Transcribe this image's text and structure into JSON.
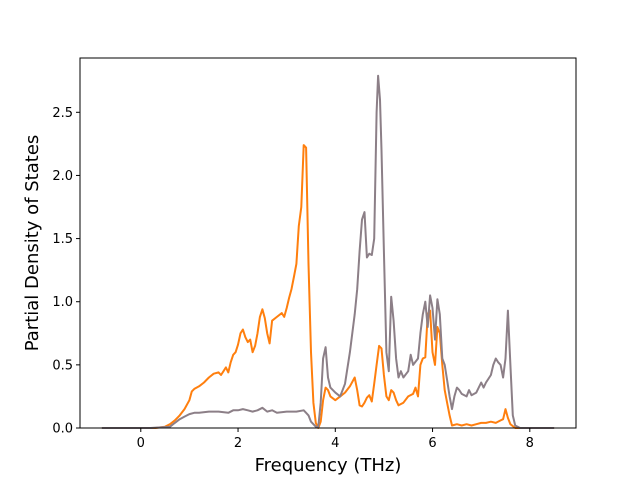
{
  "chart_data": {
    "type": "line",
    "title": "",
    "xlabel": "Frequency (THz)",
    "ylabel": "Partial Density of States",
    "xlim": [
      -1.25,
      8.95
    ],
    "ylim": [
      0,
      2.93
    ],
    "xticks": [
      0,
      2,
      4,
      6,
      8
    ],
    "xtick_labels": [
      "0",
      "2",
      "4",
      "6",
      "8"
    ],
    "yticks": [
      0,
      0.5,
      1.0,
      1.5,
      2.0,
      2.5
    ],
    "ytick_labels": [
      "0.0",
      "0.5",
      "1.0",
      "1.5",
      "2.0",
      "2.5"
    ],
    "grid": false,
    "legend": "none",
    "series": [
      {
        "color": "#ff7f0e",
        "points": [
          [
            -0.8,
            0
          ],
          [
            0.3,
            0
          ],
          [
            0.5,
            0.01
          ],
          [
            0.6,
            0.03
          ],
          [
            0.7,
            0.06
          ],
          [
            0.8,
            0.1
          ],
          [
            0.9,
            0.15
          ],
          [
            1.0,
            0.22
          ],
          [
            1.05,
            0.29
          ],
          [
            1.1,
            0.31
          ],
          [
            1.2,
            0.33
          ],
          [
            1.3,
            0.36
          ],
          [
            1.4,
            0.4
          ],
          [
            1.5,
            0.43
          ],
          [
            1.6,
            0.44
          ],
          [
            1.65,
            0.42
          ],
          [
            1.7,
            0.45
          ],
          [
            1.75,
            0.48
          ],
          [
            1.8,
            0.44
          ],
          [
            1.85,
            0.52
          ],
          [
            1.9,
            0.58
          ],
          [
            1.95,
            0.6
          ],
          [
            2.0,
            0.66
          ],
          [
            2.05,
            0.75
          ],
          [
            2.1,
            0.78
          ],
          [
            2.15,
            0.72
          ],
          [
            2.2,
            0.68
          ],
          [
            2.25,
            0.7
          ],
          [
            2.3,
            0.6
          ],
          [
            2.35,
            0.65
          ],
          [
            2.4,
            0.75
          ],
          [
            2.45,
            0.88
          ],
          [
            2.5,
            0.94
          ],
          [
            2.55,
            0.87
          ],
          [
            2.6,
            0.75
          ],
          [
            2.65,
            0.67
          ],
          [
            2.7,
            0.85
          ],
          [
            2.8,
            0.88
          ],
          [
            2.9,
            0.91
          ],
          [
            2.95,
            0.88
          ],
          [
            3.0,
            0.95
          ],
          [
            3.05,
            1.03
          ],
          [
            3.1,
            1.1
          ],
          [
            3.15,
            1.2
          ],
          [
            3.2,
            1.3
          ],
          [
            3.25,
            1.6
          ],
          [
            3.3,
            1.75
          ],
          [
            3.35,
            2.24
          ],
          [
            3.4,
            2.22
          ],
          [
            3.45,
            1.3
          ],
          [
            3.5,
            0.6
          ],
          [
            3.55,
            0.2
          ],
          [
            3.6,
            0.04
          ],
          [
            3.65,
            0.0
          ],
          [
            3.7,
            0.05
          ],
          [
            3.75,
            0.22
          ],
          [
            3.8,
            0.32
          ],
          [
            3.85,
            0.3
          ],
          [
            3.9,
            0.25
          ],
          [
            4.0,
            0.22
          ],
          [
            4.1,
            0.25
          ],
          [
            4.2,
            0.28
          ],
          [
            4.3,
            0.33
          ],
          [
            4.4,
            0.4
          ],
          [
            4.45,
            0.3
          ],
          [
            4.5,
            0.18
          ],
          [
            4.55,
            0.17
          ],
          [
            4.6,
            0.2
          ],
          [
            4.65,
            0.24
          ],
          [
            4.7,
            0.26
          ],
          [
            4.75,
            0.21
          ],
          [
            4.8,
            0.35
          ],
          [
            4.85,
            0.5
          ],
          [
            4.9,
            0.65
          ],
          [
            4.95,
            0.63
          ],
          [
            5.0,
            0.42
          ],
          [
            5.05,
            0.25
          ],
          [
            5.1,
            0.22
          ],
          [
            5.15,
            0.3
          ],
          [
            5.2,
            0.28
          ],
          [
            5.25,
            0.22
          ],
          [
            5.3,
            0.18
          ],
          [
            5.4,
            0.2
          ],
          [
            5.5,
            0.25
          ],
          [
            5.6,
            0.27
          ],
          [
            5.65,
            0.32
          ],
          [
            5.7,
            0.25
          ],
          [
            5.75,
            0.5
          ],
          [
            5.8,
            0.55
          ],
          [
            5.85,
            0.56
          ],
          [
            5.9,
            0.9
          ],
          [
            5.95,
            0.93
          ],
          [
            6.0,
            0.6
          ],
          [
            6.05,
            0.5
          ],
          [
            6.1,
            0.8
          ],
          [
            6.15,
            0.75
          ],
          [
            6.2,
            0.5
          ],
          [
            6.25,
            0.3
          ],
          [
            6.3,
            0.2
          ],
          [
            6.35,
            0.1
          ],
          [
            6.4,
            0.02
          ],
          [
            6.5,
            0.03
          ],
          [
            6.6,
            0.02
          ],
          [
            6.7,
            0.03
          ],
          [
            6.8,
            0.02
          ],
          [
            6.9,
            0.03
          ],
          [
            7.0,
            0.04
          ],
          [
            7.1,
            0.04
          ],
          [
            7.2,
            0.05
          ],
          [
            7.3,
            0.04
          ],
          [
            7.4,
            0.06
          ],
          [
            7.45,
            0.07
          ],
          [
            7.5,
            0.15
          ],
          [
            7.55,
            0.08
          ],
          [
            7.6,
            0.03
          ],
          [
            7.7,
            0.0
          ],
          [
            8.5,
            0.0
          ]
        ]
      },
      {
        "color": "#8c7f87",
        "points": [
          [
            -0.8,
            0
          ],
          [
            0.2,
            0
          ],
          [
            0.4,
            0.005
          ],
          [
            0.6,
            0.01
          ],
          [
            0.7,
            0.04
          ],
          [
            0.8,
            0.07
          ],
          [
            0.9,
            0.09
          ],
          [
            1.0,
            0.11
          ],
          [
            1.1,
            0.12
          ],
          [
            1.2,
            0.12
          ],
          [
            1.4,
            0.13
          ],
          [
            1.6,
            0.13
          ],
          [
            1.8,
            0.12
          ],
          [
            1.9,
            0.14
          ],
          [
            2.0,
            0.14
          ],
          [
            2.1,
            0.15
          ],
          [
            2.2,
            0.14
          ],
          [
            2.3,
            0.13
          ],
          [
            2.4,
            0.14
          ],
          [
            2.5,
            0.16
          ],
          [
            2.6,
            0.13
          ],
          [
            2.7,
            0.14
          ],
          [
            2.8,
            0.12
          ],
          [
            3.0,
            0.13
          ],
          [
            3.2,
            0.13
          ],
          [
            3.35,
            0.14
          ],
          [
            3.4,
            0.12
          ],
          [
            3.45,
            0.1
          ],
          [
            3.5,
            0.05
          ],
          [
            3.6,
            0.01
          ],
          [
            3.65,
            0.01
          ],
          [
            3.7,
            0.2
          ],
          [
            3.75,
            0.55
          ],
          [
            3.8,
            0.64
          ],
          [
            3.85,
            0.4
          ],
          [
            3.9,
            0.32
          ],
          [
            4.0,
            0.28
          ],
          [
            4.1,
            0.25
          ],
          [
            4.2,
            0.35
          ],
          [
            4.3,
            0.6
          ],
          [
            4.4,
            0.9
          ],
          [
            4.45,
            1.1
          ],
          [
            4.5,
            1.4
          ],
          [
            4.55,
            1.65
          ],
          [
            4.6,
            1.71
          ],
          [
            4.65,
            1.35
          ],
          [
            4.7,
            1.38
          ],
          [
            4.75,
            1.37
          ],
          [
            4.8,
            1.5
          ],
          [
            4.85,
            2.5
          ],
          [
            4.88,
            2.79
          ],
          [
            4.92,
            2.6
          ],
          [
            4.95,
            2.2
          ],
          [
            5.0,
            1.4
          ],
          [
            5.05,
            0.6
          ],
          [
            5.1,
            0.45
          ],
          [
            5.15,
            1.04
          ],
          [
            5.2,
            0.85
          ],
          [
            5.25,
            0.55
          ],
          [
            5.3,
            0.4
          ],
          [
            5.35,
            0.45
          ],
          [
            5.4,
            0.4
          ],
          [
            5.5,
            0.45
          ],
          [
            5.55,
            0.58
          ],
          [
            5.6,
            0.5
          ],
          [
            5.7,
            0.55
          ],
          [
            5.75,
            0.75
          ],
          [
            5.8,
            0.9
          ],
          [
            5.85,
            1.0
          ],
          [
            5.9,
            0.8
          ],
          [
            5.95,
            1.05
          ],
          [
            6.0,
            0.95
          ],
          [
            6.05,
            0.7
          ],
          [
            6.1,
            1.02
          ],
          [
            6.15,
            0.9
          ],
          [
            6.2,
            0.55
          ],
          [
            6.25,
            0.5
          ],
          [
            6.3,
            0.38
          ],
          [
            6.35,
            0.25
          ],
          [
            6.4,
            0.15
          ],
          [
            6.45,
            0.25
          ],
          [
            6.5,
            0.32
          ],
          [
            6.55,
            0.3
          ],
          [
            6.6,
            0.27
          ],
          [
            6.7,
            0.25
          ],
          [
            6.75,
            0.3
          ],
          [
            6.8,
            0.26
          ],
          [
            6.9,
            0.28
          ],
          [
            7.0,
            0.36
          ],
          [
            7.05,
            0.32
          ],
          [
            7.1,
            0.36
          ],
          [
            7.2,
            0.42
          ],
          [
            7.25,
            0.5
          ],
          [
            7.3,
            0.55
          ],
          [
            7.35,
            0.52
          ],
          [
            7.4,
            0.5
          ],
          [
            7.45,
            0.4
          ],
          [
            7.5,
            0.55
          ],
          [
            7.55,
            0.93
          ],
          [
            7.6,
            0.5
          ],
          [
            7.65,
            0.1
          ],
          [
            7.7,
            0.02
          ],
          [
            7.8,
            0.0
          ],
          [
            8.5,
            0.0
          ]
        ]
      }
    ]
  }
}
